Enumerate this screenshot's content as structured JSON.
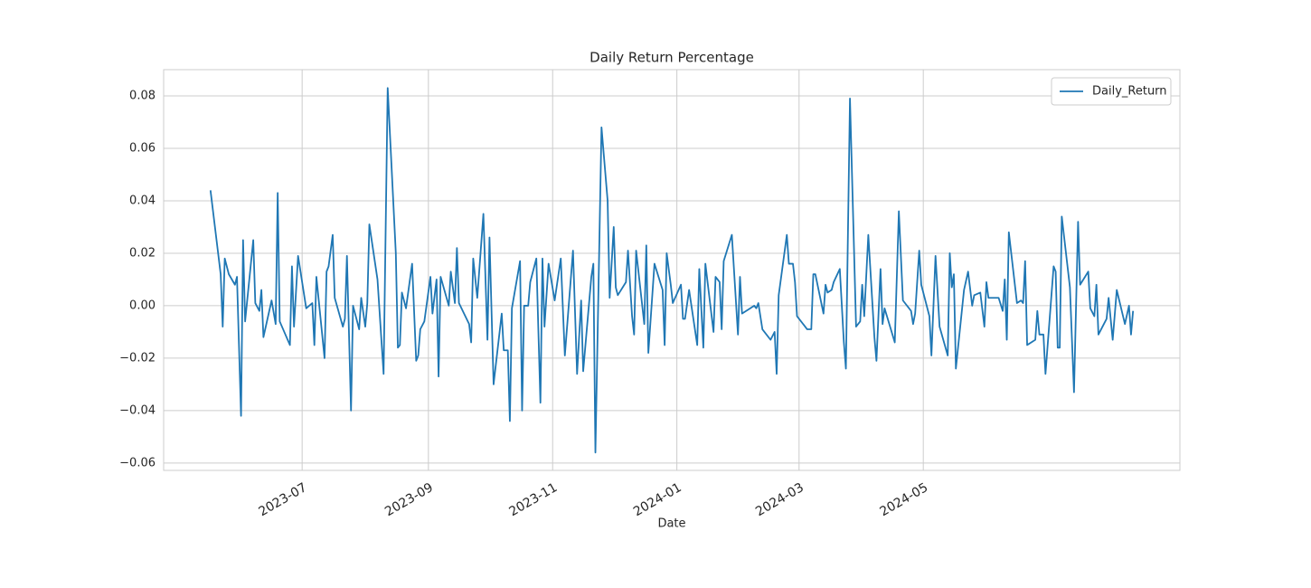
{
  "chart_data": {
    "type": "line",
    "title": "Daily Return Percentage",
    "xlabel": "Date",
    "x": [
      19494,
      19499,
      19500,
      19501,
      19503,
      19506,
      19507,
      19509,
      19510,
      19511,
      19515,
      19516,
      19518,
      19519,
      19520,
      19524,
      19526,
      19527,
      19528,
      19533,
      19534,
      19535,
      19537,
      19541,
      19544,
      19545,
      19546,
      19550,
      19551,
      19552,
      19554,
      19555,
      19559,
      19560,
      19561,
      19563,
      19564,
      19567,
      19568,
      19570,
      19571,
      19572,
      19576,
      19578,
      19579,
      19581,
      19585,
      19586,
      19587,
      19588,
      19590,
      19593,
      19595,
      19596,
      19597,
      19599,
      19602,
      19603,
      19605,
      19606,
      19607,
      19611,
      19612,
      19614,
      19615,
      19616,
      19621,
      19622,
      19623,
      19625,
      19628,
      19630,
      19631,
      19633,
      19637,
      19638,
      19640,
      19641,
      19642,
      19646,
      19647,
      19648,
      19650,
      19651,
      19654,
      19656,
      19657,
      19658,
      19660,
      19663,
      19666,
      19668,
      19672,
      19674,
      19676,
      19677,
      19681,
      19682,
      19683,
      19686,
      19689,
      19690,
      19692,
      19693,
      19694,
      19698,
      19699,
      19701,
      19702,
      19703,
      19707,
      19708,
      19709,
      19712,
      19716,
      19717,
      19718,
      19720,
      19721,
      19725,
      19726,
      19727,
      19729,
      19733,
      19734,
      19736,
      19737,
      19741,
      19742,
      19744,
      19745,
      19746,
      19750,
      19753,
      19754,
      19755,
      19759,
      19761,
      19762,
      19763,
      19765,
      19769,
      19771,
      19772,
      19773,
      19777,
      19778,
      19780,
      19781,
      19782,
      19787,
      19789,
      19790,
      19791,
      19795,
      19796,
      19797,
      19799,
      19800,
      19803,
      19805,
      19806,
      19808,
      19811,
      19813,
      19814,
      19815,
      19817,
      19820,
      19821,
      19823,
      19824,
      19825,
      19830,
      19832,
      19834,
      19838,
      19839,
      19840,
      19842,
      19843,
      19847,
      19848,
      19850,
      19852,
      19856,
      19857,
      19858,
      19859,
      19860,
      19864,
      19866,
      19868,
      19869,
      19872,
      19874,
      19875,
      19876,
      19881,
      19883,
      19884,
      19885,
      19886,
      19890,
      19892,
      19893,
      19894,
      19895,
      19899,
      19900,
      19901,
      19903,
      19904,
      19908,
      19909,
      19910,
      19911,
      19912,
      19916,
      19918,
      19920,
      19921,
      19925,
      19926,
      19928,
      19929,
      19930,
      19934,
      19935,
      19937,
      19939,
      19943,
      19945,
      19946,
      19947
    ],
    "series": [
      {
        "name": "Daily_Return",
        "color": "#1f77b4",
        "values": [
          0.044,
          0.012,
          -0.008,
          0.018,
          0.012,
          0.008,
          0.011,
          -0.042,
          0.025,
          -0.006,
          0.025,
          0.001,
          -0.002,
          0.006,
          -0.012,
          0.002,
          -0.007,
          0.043,
          -0.006,
          -0.015,
          0.015,
          -0.008,
          0.019,
          -0.001,
          0.001,
          -0.015,
          0.011,
          -0.02,
          0.013,
          0.015,
          0.027,
          0.003,
          -0.008,
          -0.005,
          0.019,
          -0.04,
          0.0,
          -0.009,
          0.003,
          -0.008,
          0.001,
          0.031,
          0.01,
          -0.014,
          -0.026,
          0.083,
          0.02,
          -0.016,
          -0.015,
          0.005,
          -0.001,
          0.016,
          -0.021,
          -0.019,
          -0.009,
          -0.006,
          0.011,
          -0.003,
          0.01,
          -0.027,
          0.011,
          0.0,
          0.013,
          0.001,
          0.022,
          0.001,
          -0.007,
          -0.014,
          0.018,
          0.003,
          0.035,
          -0.013,
          0.026,
          -0.03,
          -0.003,
          -0.017,
          -0.017,
          -0.044,
          -0.001,
          0.017,
          -0.04,
          0.0,
          0.0,
          0.009,
          0.018,
          -0.037,
          0.018,
          -0.008,
          0.016,
          0.002,
          0.018,
          -0.019,
          0.021,
          -0.026,
          0.002,
          -0.025,
          0.011,
          0.016,
          -0.056,
          0.068,
          0.04,
          0.003,
          0.03,
          0.007,
          0.004,
          0.009,
          0.021,
          -0.004,
          -0.011,
          0.021,
          -0.007,
          0.023,
          -0.018,
          0.016,
          0.006,
          -0.015,
          0.02,
          0.008,
          0.001,
          0.008,
          -0.005,
          -0.005,
          0.006,
          -0.015,
          0.014,
          -0.016,
          0.016,
          -0.01,
          0.011,
          0.009,
          -0.009,
          0.017,
          0.027,
          -0.011,
          0.011,
          -0.003,
          -0.001,
          0.0,
          -0.001,
          0.001,
          -0.009,
          -0.013,
          -0.01,
          -0.026,
          0.004,
          0.027,
          0.016,
          0.016,
          0.009,
          -0.004,
          -0.009,
          -0.009,
          0.012,
          0.012,
          -0.003,
          0.008,
          0.005,
          0.006,
          0.009,
          0.014,
          -0.014,
          -0.024,
          0.079,
          -0.008,
          -0.006,
          0.008,
          -0.004,
          0.027,
          -0.012,
          -0.021,
          0.014,
          -0.007,
          -0.001,
          -0.014,
          0.036,
          0.002,
          -0.002,
          -0.007,
          -0.003,
          0.021,
          0.008,
          -0.004,
          -0.019,
          0.019,
          -0.008,
          -0.019,
          0.02,
          0.007,
          0.012,
          -0.024,
          0.006,
          0.013,
          0.0,
          0.004,
          0.005,
          -0.008,
          0.009,
          0.003,
          0.003,
          -0.002,
          0.01,
          -0.013,
          0.028,
          0.001,
          0.002,
          0.001,
          0.017,
          -0.015,
          -0.013,
          -0.002,
          -0.011,
          -0.011,
          -0.026,
          0.015,
          0.013,
          -0.016,
          -0.016,
          0.034,
          0.007,
          -0.033,
          0.032,
          0.008,
          0.013,
          -0.001,
          -0.004,
          0.008,
          -0.011,
          -0.005,
          0.003,
          -0.013,
          0.006,
          -0.007,
          0.0,
          -0.011,
          -0.002
        ]
      }
    ],
    "xlim": [
      19471,
      19970
    ],
    "xticks": [
      {
        "value": 19539,
        "label": "2023-07"
      },
      {
        "value": 19601,
        "label": "2023-09"
      },
      {
        "value": 19662,
        "label": "2023-11"
      },
      {
        "value": 19723,
        "label": "2024-01"
      },
      {
        "value": 19783,
        "label": "2024-03"
      },
      {
        "value": 19844,
        "label": "2024-05"
      }
    ],
    "ylim": [
      -0.0628,
      0.09
    ],
    "yticks": [
      {
        "value": -0.06,
        "label": "−0.06"
      },
      {
        "value": -0.04,
        "label": "−0.04"
      },
      {
        "value": -0.02,
        "label": "−0.02"
      },
      {
        "value": 0,
        "label": "0.00"
      },
      {
        "value": 0.02,
        "label": "0.02"
      },
      {
        "value": 0.04,
        "label": "0.04"
      },
      {
        "value": 0.06,
        "label": "0.06"
      },
      {
        "value": 0.08,
        "label": "0.08"
      }
    ],
    "grid": true,
    "legend": "upper right"
  }
}
